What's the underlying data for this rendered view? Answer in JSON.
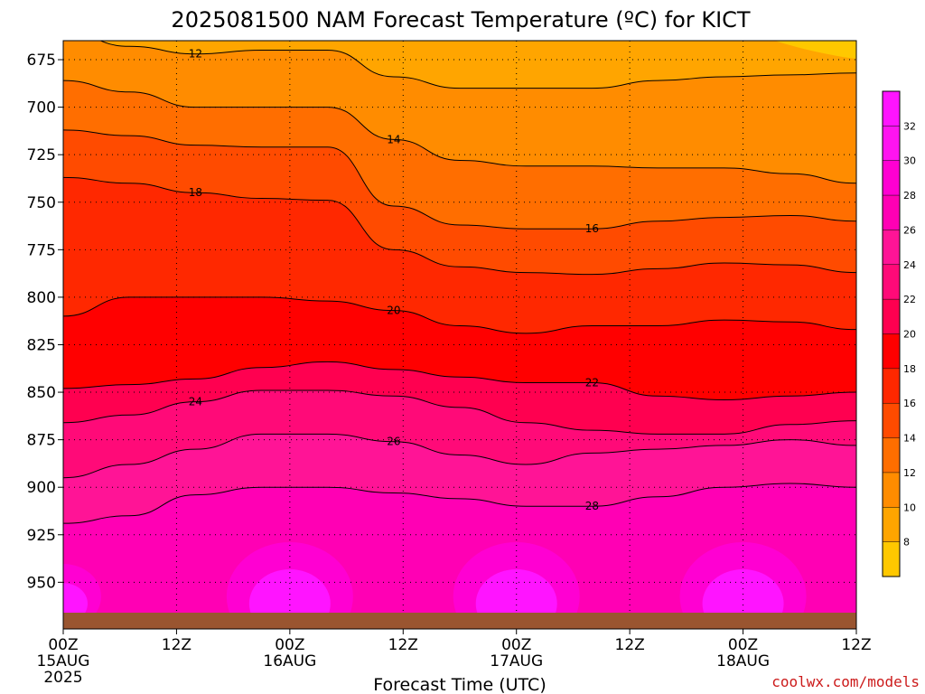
{
  "chart_data": {
    "type": "heatmap",
    "title": "2025081500 NAM Forecast Temperature (ºC) for KICT",
    "xlabel": "Forecast Time (UTC)",
    "credit": "coolwx.com/models",
    "y_axis": {
      "ticks": [
        675,
        700,
        725,
        750,
        775,
        800,
        825,
        850,
        875,
        900,
        925,
        950
      ],
      "inverted": true
    },
    "x_axis": {
      "ticks": [
        {
          "time": "00Z",
          "date": "15AUG",
          "year": "2025"
        },
        {
          "time": "12Z",
          "date": "",
          "year": ""
        },
        {
          "time": "00Z",
          "date": "16AUG",
          "year": ""
        },
        {
          "time": "12Z",
          "date": "",
          "year": ""
        },
        {
          "time": "00Z",
          "date": "17AUG",
          "year": ""
        },
        {
          "time": "12Z",
          "date": "",
          "year": ""
        },
        {
          "time": "00Z",
          "date": "18AUG",
          "year": ""
        },
        {
          "time": "12Z",
          "date": "",
          "year": ""
        }
      ]
    },
    "colorbar": {
      "levels": [
        8,
        10,
        12,
        14,
        16,
        18,
        20,
        22,
        24,
        26,
        28,
        30,
        32
      ],
      "colors": [
        "#ffc800",
        "#ffa500",
        "#ff8c00",
        "#ff6e00",
        "#ff4b00",
        "#ff2800",
        "#ff0000",
        "#ff0050",
        "#ff0a78",
        "#ff1496",
        "#ff00b4",
        "#ff00d2",
        "#ff14f0",
        "#ff14ff"
      ]
    },
    "contours": [
      {
        "label": "12",
        "p": [
          660,
          668,
          672,
          670,
          670,
          684,
          690,
          690,
          690,
          686,
          684,
          683,
          682
        ]
      },
      {
        "label": "14",
        "p": [
          686,
          692,
          700,
          700,
          700,
          717,
          728,
          731,
          731,
          732,
          732,
          735,
          740
        ]
      },
      {
        "label": "16",
        "p": [
          712,
          715,
          720,
          721,
          721,
          752,
          762,
          764,
          764,
          760,
          758,
          757,
          760
        ]
      },
      {
        "label": "18",
        "p": [
          737,
          740,
          745,
          748,
          749,
          775,
          784,
          787,
          788,
          785,
          782,
          783,
          787
        ]
      },
      {
        "label": "20",
        "p": [
          810,
          800,
          800,
          800,
          802,
          807,
          815,
          819,
          815,
          815,
          812,
          813,
          817
        ]
      },
      {
        "label": "22",
        "p": [
          848,
          846,
          843,
          837,
          834,
          838,
          842,
          845,
          845,
          852,
          854,
          852,
          850
        ]
      },
      {
        "label": "24",
        "p": [
          866,
          862,
          855,
          849,
          849,
          852,
          858,
          866,
          870,
          872,
          872,
          867,
          865
        ]
      },
      {
        "label": "26",
        "p": [
          895,
          888,
          880,
          872,
          872,
          876,
          883,
          888,
          882,
          880,
          878,
          875,
          878
        ]
      },
      {
        "label": "28",
        "p": [
          919,
          915,
          904,
          900,
          900,
          903,
          906,
          910,
          910,
          905,
          900,
          898,
          900
        ]
      }
    ],
    "ylim": [
      665,
      966
    ]
  }
}
